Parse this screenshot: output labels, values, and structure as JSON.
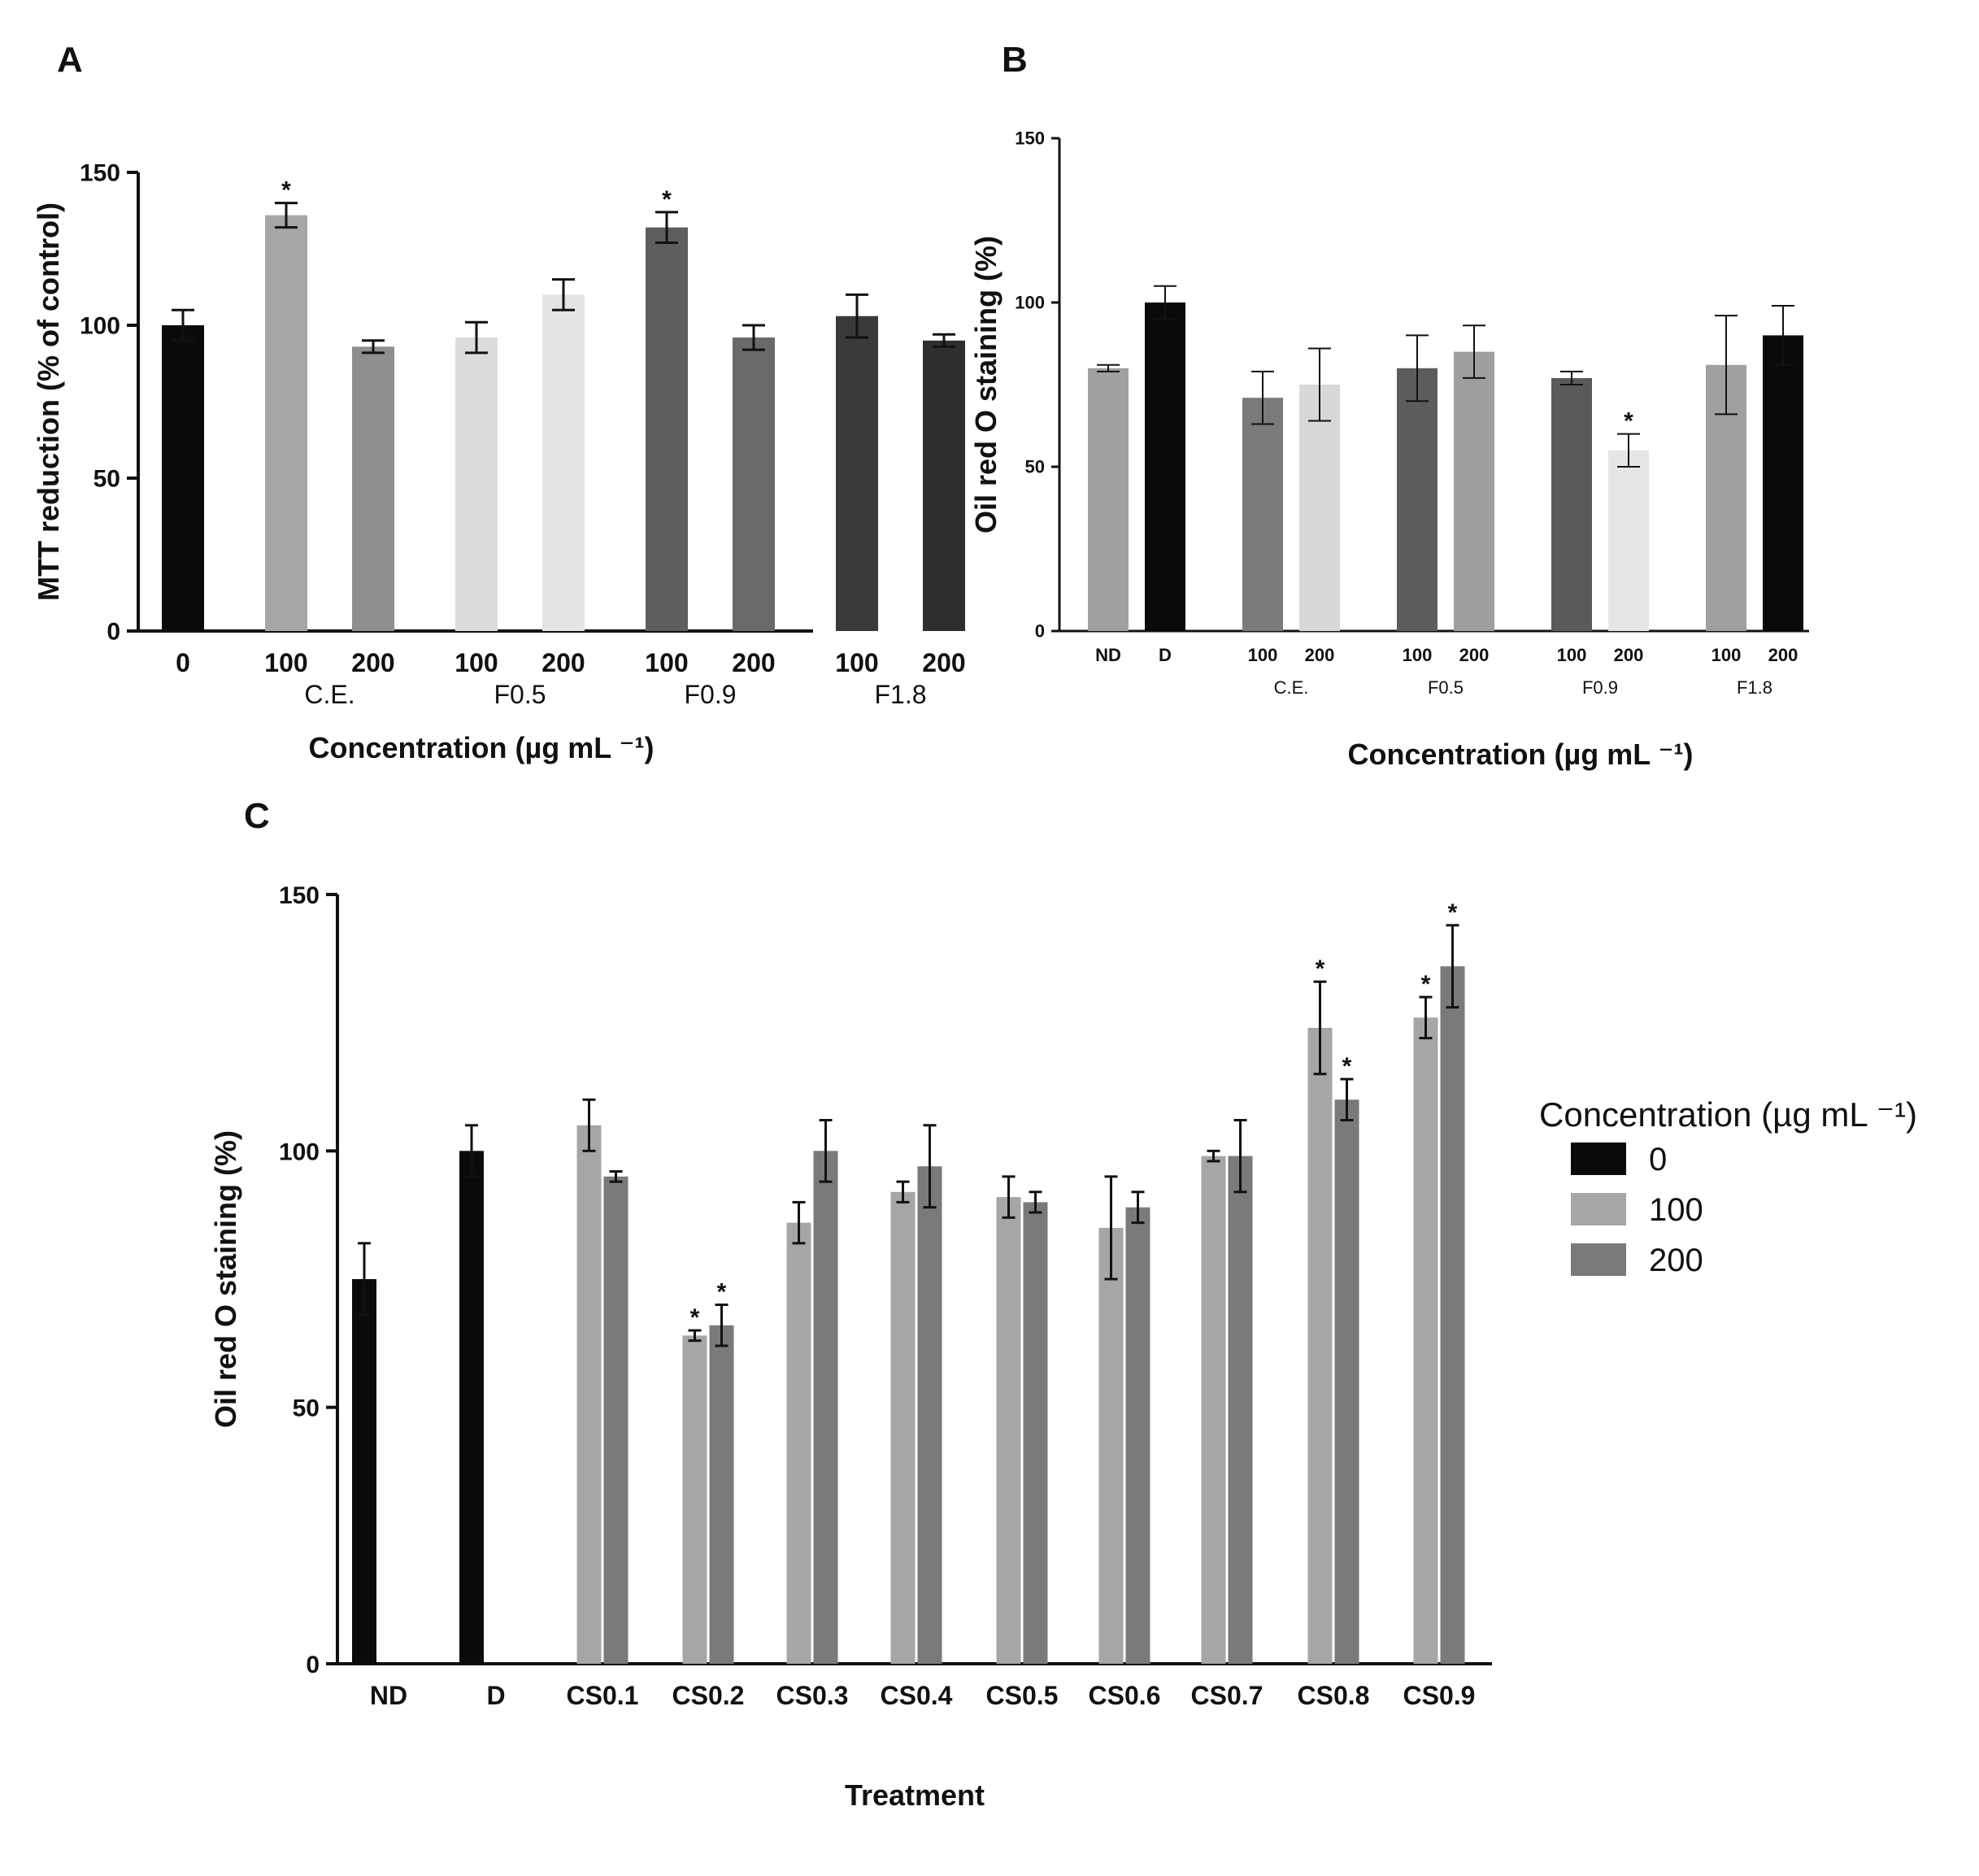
{
  "chart_data": [
    {
      "panel": "A",
      "type": "bar",
      "ylabel": "MTT reduction (% of control)",
      "xlabel": "Concentration (µg mL ⁻¹)",
      "ylim": [
        0,
        150
      ],
      "yticks": [
        "0",
        "50",
        "100",
        "150"
      ],
      "groups": [
        {
          "label": "",
          "bars": [
            {
              "tick": "0",
              "value": 100,
              "err": 5,
              "color": "#0a0a0a",
              "sig": false
            }
          ]
        },
        {
          "label": "C.E.",
          "bars": [
            {
              "tick": "100",
              "value": 136,
              "err": 4,
              "color": "#a6a6a6",
              "sig": true
            },
            {
              "tick": "200",
              "value": 93,
              "err": 2,
              "color": "#8e8e8e",
              "sig": false
            }
          ]
        },
        {
          "label": "F0.5",
          "bars": [
            {
              "tick": "100",
              "value": 96,
              "err": 5,
              "color": "#dcdcdc",
              "sig": false
            },
            {
              "tick": "200",
              "value": 110,
              "err": 5,
              "color": "#e4e4e4",
              "sig": false
            }
          ]
        },
        {
          "label": "F0.9",
          "bars": [
            {
              "tick": "100",
              "value": 132,
              "err": 5,
              "color": "#5e5e5e",
              "sig": true
            },
            {
              "tick": "200",
              "value": 96,
              "err": 4,
              "color": "#6a6a6a",
              "sig": false
            }
          ]
        },
        {
          "label": "F1.8",
          "bars": [
            {
              "tick": "100",
              "value": 103,
              "err": 7,
              "color": "#3a3a3a",
              "sig": false
            },
            {
              "tick": "200",
              "value": 95,
              "err": 2,
              "color": "#2e2e2e",
              "sig": false
            }
          ]
        }
      ]
    },
    {
      "panel": "B",
      "type": "bar",
      "ylabel": "Oil red O staining (%)",
      "xlabel": "Concentration (µg mL ⁻¹)",
      "ylim": [
        0,
        150
      ],
      "yticks": [
        "0",
        "50",
        "100",
        "150"
      ],
      "groups": [
        {
          "label": "",
          "bars": [
            {
              "tick": "ND",
              "value": 80,
              "err": 1,
              "color": "#a0a0a0",
              "sig": false
            },
            {
              "tick": "D",
              "value": 100,
              "err": 5,
              "color": "#0a0a0a",
              "sig": false
            }
          ]
        },
        {
          "label": "C.E.",
          "bars": [
            {
              "tick": "100",
              "value": 71,
              "err": 8,
              "color": "#7a7a7a",
              "sig": false
            },
            {
              "tick": "200",
              "value": 75,
              "err": 11,
              "color": "#d8d8d8",
              "sig": false
            }
          ]
        },
        {
          "label": "F0.5",
          "bars": [
            {
              "tick": "100",
              "value": 80,
              "err": 10,
              "color": "#5c5c5c",
              "sig": false
            },
            {
              "tick": "200",
              "value": 85,
              "err": 8,
              "color": "#9e9e9e",
              "sig": false
            }
          ]
        },
        {
          "label": "F0.9",
          "bars": [
            {
              "tick": "100",
              "value": 77,
              "err": 2,
              "color": "#5a5a5a",
              "sig": false
            },
            {
              "tick": "200",
              "value": 55,
              "err": 5,
              "color": "#e6e6e6",
              "sig": true
            }
          ]
        },
        {
          "label": "F1.8",
          "bars": [
            {
              "tick": "100",
              "value": 81,
              "err": 15,
              "color": "#a0a0a0",
              "sig": false
            },
            {
              "tick": "200",
              "value": 90,
              "err": 9,
              "color": "#0a0a0a",
              "sig": false
            }
          ]
        }
      ]
    },
    {
      "panel": "C",
      "type": "bar",
      "ylabel": "Oil red O staining (%)",
      "xlabel": "Treatment",
      "ylim": [
        0,
        150
      ],
      "yticks": [
        "0",
        "50",
        "100",
        "150"
      ],
      "legend": {
        "title": "Concentration (µg mL ⁻¹)",
        "entries": [
          {
            "label": "0",
            "color": "#0a0a0a"
          },
          {
            "label": "100",
            "color": "#a6a6a6"
          },
          {
            "label": "200",
            "color": "#7a7a7a"
          }
        ]
      },
      "categories": [
        "ND",
        "D",
        "CS0.1",
        "CS0.2",
        "CS0.3",
        "CS0.4",
        "CS0.5",
        "CS0.6",
        "CS0.7",
        "CS0.8",
        "CS0.9"
      ],
      "bars": [
        {
          "category": "ND",
          "series": "0",
          "value": 75,
          "err": 7,
          "sig": false
        },
        {
          "category": "D",
          "series": "0",
          "value": 100,
          "err": 5,
          "sig": false
        },
        {
          "category": "CS0.1",
          "series": "100",
          "value": 105,
          "err": 5,
          "sig": false
        },
        {
          "category": "CS0.1",
          "series": "200",
          "value": 95,
          "err": 1,
          "sig": false
        },
        {
          "category": "CS0.2",
          "series": "100",
          "value": 64,
          "err": 1,
          "sig": true
        },
        {
          "category": "CS0.2",
          "series": "200",
          "value": 66,
          "err": 4,
          "sig": true
        },
        {
          "category": "CS0.3",
          "series": "100",
          "value": 86,
          "err": 4,
          "sig": false
        },
        {
          "category": "CS0.3",
          "series": "200",
          "value": 100,
          "err": 6,
          "sig": false
        },
        {
          "category": "CS0.4",
          "series": "100",
          "value": 92,
          "err": 2,
          "sig": false
        },
        {
          "category": "CS0.4",
          "series": "200",
          "value": 97,
          "err": 8,
          "sig": false
        },
        {
          "category": "CS0.5",
          "series": "100",
          "value": 91,
          "err": 4,
          "sig": false
        },
        {
          "category": "CS0.5",
          "series": "200",
          "value": 90,
          "err": 2,
          "sig": false
        },
        {
          "category": "CS0.6",
          "series": "100",
          "value": 85,
          "err": 10,
          "sig": false
        },
        {
          "category": "CS0.6",
          "series": "200",
          "value": 89,
          "err": 3,
          "sig": false
        },
        {
          "category": "CS0.7",
          "series": "100",
          "value": 99,
          "err": 1,
          "sig": false
        },
        {
          "category": "CS0.7",
          "series": "200",
          "value": 99,
          "err": 7,
          "sig": false
        },
        {
          "category": "CS0.8",
          "series": "100",
          "value": 124,
          "err": 9,
          "sig": true
        },
        {
          "category": "CS0.8",
          "series": "200",
          "value": 110,
          "err": 4,
          "sig": true
        },
        {
          "category": "CS0.9",
          "series": "100",
          "value": 126,
          "err": 4,
          "sig": true
        },
        {
          "category": "CS0.9",
          "series": "200",
          "value": 136,
          "err": 8,
          "sig": true
        }
      ]
    }
  ],
  "significance_marker": "*",
  "panel_labels": [
    "A",
    "B",
    "C"
  ]
}
